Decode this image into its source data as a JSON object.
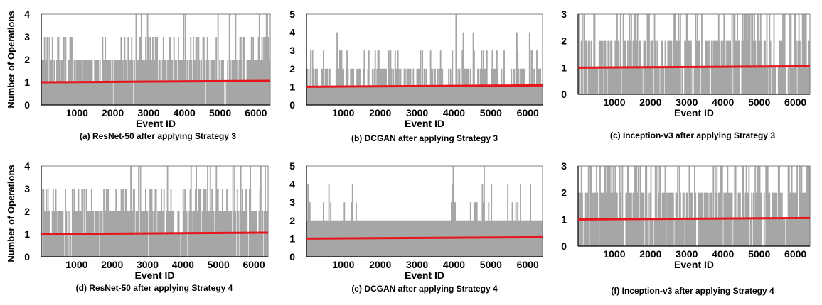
{
  "figure": {
    "ylabel": "Number of Operations",
    "colors": {
      "bars": "#a6a6a6",
      "reference_line": "#e8141c",
      "axes": "#000000"
    }
  },
  "chart_data": [
    {
      "type": "bar",
      "caption": "(a) ResNet-50 after applying Strategy 3",
      "xlabel": "Event ID",
      "xlim": [
        0,
        6400
      ],
      "ylim": [
        0,
        4
      ],
      "xticks": [
        1000,
        2000,
        3000,
        4000,
        5000,
        6000
      ],
      "yticks": [
        0,
        1,
        2,
        3,
        4
      ],
      "levels": [
        0,
        1,
        2,
        3,
        4
      ],
      "level_shares": [
        0.04,
        0.16,
        0.52,
        0.2,
        0.08
      ],
      "baseline": 1,
      "segments": [
        {
          "x_start": 0,
          "x_end": 950,
          "dominant_range": [
            1,
            3
          ]
        },
        {
          "x_start": 950,
          "x_end": 1500,
          "dominant_range": [
            0,
            2
          ]
        },
        {
          "x_start": 1500,
          "x_end": 2200,
          "dominant_range": [
            0,
            3
          ]
        },
        {
          "x_start": 2200,
          "x_end": 6400,
          "dominant_range": [
            0,
            4
          ]
        }
      ]
    },
    {
      "type": "bar",
      "caption": "(b) DCGAN after applying Strategy 3",
      "xlabel": "Event ID",
      "xlim": [
        0,
        6400
      ],
      "ylim": [
        0,
        5
      ],
      "xticks": [
        1000,
        2000,
        3000,
        4000,
        5000,
        6000
      ],
      "yticks": [
        0,
        1,
        2,
        3,
        4,
        5
      ],
      "levels": [
        0,
        1,
        2,
        3,
        4,
        5
      ],
      "level_shares": [
        0.02,
        0.42,
        0.4,
        0.11,
        0.04,
        0.01
      ],
      "baseline": 1,
      "segments": [
        {
          "x_start": 0,
          "x_end": 1500,
          "dominant_range": [
            1,
            4
          ]
        },
        {
          "x_start": 1500,
          "x_end": 3500,
          "dominant_range": [
            1,
            3
          ]
        },
        {
          "x_start": 3500,
          "x_end": 6400,
          "dominant_range": [
            1,
            5
          ]
        }
      ]
    },
    {
      "type": "bar",
      "caption": "(c) Inception-v3 after applying Strategy 3",
      "xlabel": "Event ID",
      "xlim": [
        0,
        6400
      ],
      "ylim": [
        0,
        3
      ],
      "xticks": [
        1000,
        2000,
        3000,
        4000,
        5000,
        6000
      ],
      "yticks": [
        0,
        1,
        2,
        3
      ],
      "levels": [
        0,
        1,
        2,
        3
      ],
      "level_shares": [
        0.12,
        0.25,
        0.38,
        0.25
      ],
      "baseline": 1,
      "segments": [
        {
          "x_start": 0,
          "x_end": 6400,
          "dominant_range": [
            0,
            3
          ]
        }
      ]
    },
    {
      "type": "bar",
      "caption": "(d) ResNet-50 after applying Strategy 4",
      "xlabel": "Event ID",
      "xlim": [
        0,
        6400
      ],
      "ylim": [
        0,
        4
      ],
      "xticks": [
        1000,
        2000,
        3000,
        4000,
        5000,
        6000
      ],
      "yticks": [
        0,
        1,
        2,
        3,
        4
      ],
      "levels": [
        0,
        1,
        2,
        3,
        4
      ],
      "level_shares": [
        0.06,
        0.12,
        0.52,
        0.22,
        0.08
      ],
      "baseline": 1,
      "segments": [
        {
          "x_start": 0,
          "x_end": 2300,
          "dominant_range": [
            0,
            3
          ]
        },
        {
          "x_start": 2300,
          "x_end": 6400,
          "dominant_range": [
            0,
            4
          ]
        }
      ]
    },
    {
      "type": "bar",
      "caption": "(e) DCGAN after applying Strategy 4",
      "xlabel": "Event ID",
      "xlim": [
        0,
        6400
      ],
      "ylim": [
        0,
        5
      ],
      "xticks": [
        1000,
        2000,
        3000,
        4000,
        5000,
        6000
      ],
      "yticks": [
        0,
        1,
        2,
        3,
        4,
        5
      ],
      "levels": [
        0,
        1,
        2,
        3,
        4,
        5
      ],
      "level_shares": [
        0.0,
        0.0,
        0.8,
        0.14,
        0.05,
        0.01
      ],
      "baseline": 1,
      "segments": [
        {
          "x_start": 0,
          "x_end": 1500,
          "dominant_range": [
            2,
            4
          ]
        },
        {
          "x_start": 1500,
          "x_end": 3900,
          "dominant_range": [
            2,
            2
          ]
        },
        {
          "x_start": 3900,
          "x_end": 6400,
          "dominant_range": [
            2,
            5
          ]
        }
      ]
    },
    {
      "type": "bar",
      "caption": "(f) Inception-v3 after applying Strategy 4",
      "xlabel": "Event ID",
      "xlim": [
        0,
        6400
      ],
      "ylim": [
        0,
        3
      ],
      "xticks": [
        1000,
        2000,
        3000,
        4000,
        5000,
        6000
      ],
      "yticks": [
        0,
        1,
        2,
        3
      ],
      "levels": [
        0,
        1,
        2,
        3
      ],
      "level_shares": [
        0.1,
        0.22,
        0.43,
        0.25
      ],
      "baseline": 1,
      "segments": [
        {
          "x_start": 0,
          "x_end": 6400,
          "dominant_range": [
            0,
            3
          ]
        }
      ]
    }
  ]
}
